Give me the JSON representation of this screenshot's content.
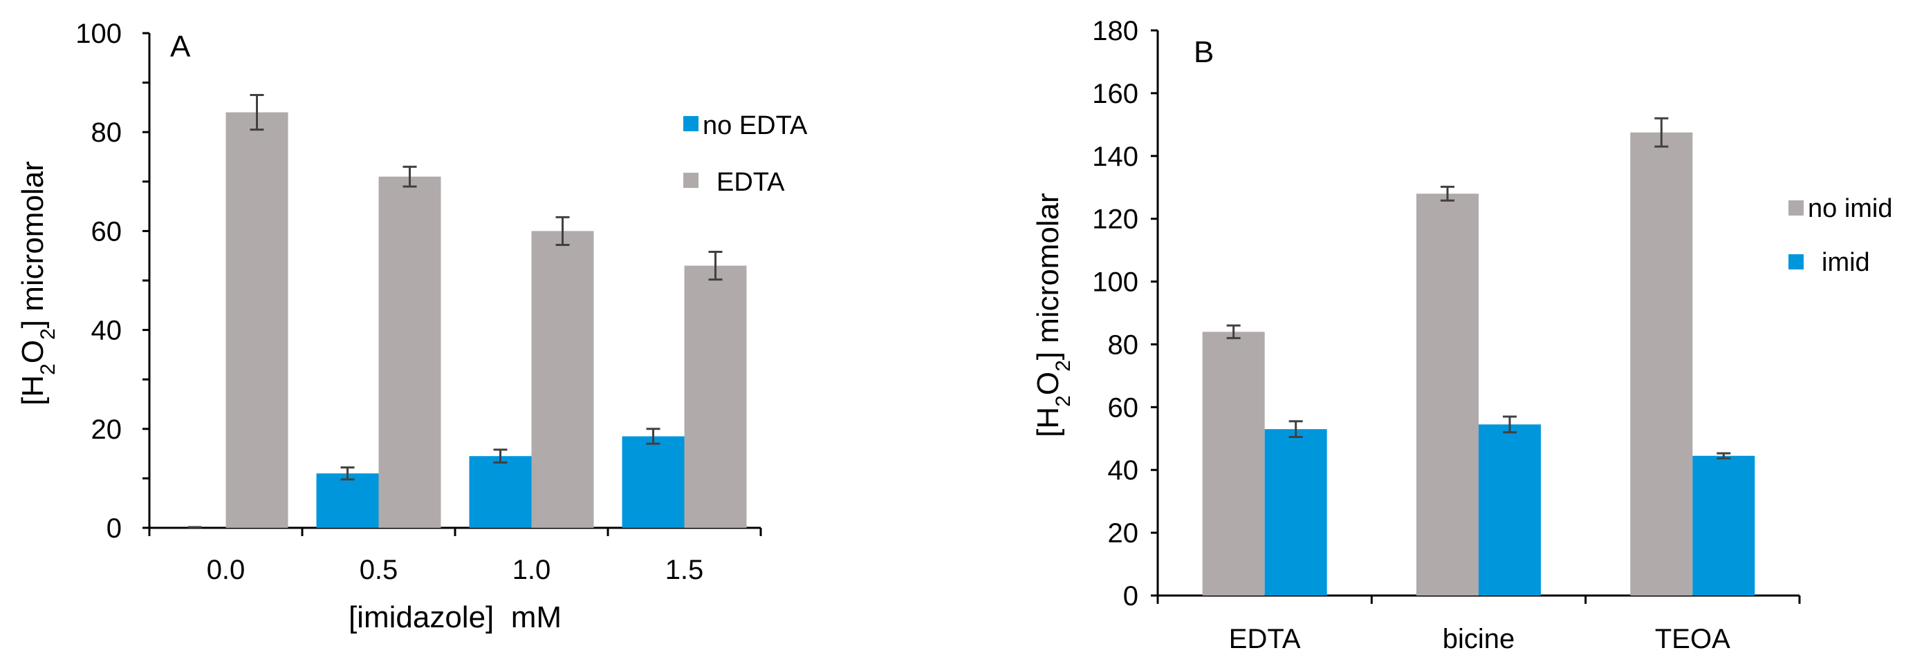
{
  "colors": {
    "no_edta": "#0096DC",
    "edta": "#B0ABAA",
    "axis": "#000000",
    "error_bar": "#404040"
  },
  "chart_data": [
    {
      "type": "bar",
      "panel_label": "A",
      "title": "",
      "xlabel": "[imidazole]  mM",
      "ylabel": {
        "prefix": "[H",
        "sub1": "2",
        "mid": "O",
        "sub2": "2",
        "suffix": "] micromolar"
      },
      "ylim": [
        0,
        100
      ],
      "yticks": [
        "0",
        "20",
        "40",
        "60",
        "80",
        "100"
      ],
      "ytick_values": [
        0,
        20,
        40,
        60,
        80,
        100
      ],
      "minor_step": 10,
      "categories": [
        "0.0",
        "0.5",
        "1.0",
        "1.5"
      ],
      "legend_position": "top-right",
      "series": [
        {
          "name": "no EDTA",
          "color_key": "no_edta",
          "values": [
            0,
            11,
            14.5,
            18.5
          ],
          "errors": [
            0,
            1.2,
            1.3,
            1.5
          ]
        },
        {
          "name": "EDTA",
          "color_key": "edta",
          "values": [
            84,
            71,
            60,
            53
          ],
          "errors": [
            3.5,
            2,
            2.8,
            2.8
          ]
        }
      ]
    },
    {
      "type": "bar",
      "panel_label": "B",
      "title": "",
      "xlabel": "",
      "ylabel": {
        "prefix": "[H",
        "sub1": "2",
        "mid": "O",
        "sub2": "2",
        "suffix": "] micromolar"
      },
      "ylim": [
        0,
        180
      ],
      "yticks": [
        "0",
        "20",
        "40",
        "60",
        "80",
        "100",
        "120",
        "140",
        "160",
        "180"
      ],
      "ytick_values": [
        0,
        20,
        40,
        60,
        80,
        100,
        120,
        140,
        160,
        180
      ],
      "minor_step": 0,
      "categories": [
        "EDTA",
        "bicine",
        "TEOA"
      ],
      "legend_position": "right",
      "series": [
        {
          "name": "no imid",
          "color_key": "edta",
          "values": [
            84,
            128,
            147.5
          ],
          "errors": [
            2,
            2.2,
            4.5
          ]
        },
        {
          "name": "imid",
          "color_key": "no_edta",
          "values": [
            53,
            54.5,
            44.5
          ],
          "errors": [
            2.5,
            2.5,
            0.8
          ]
        }
      ]
    }
  ]
}
